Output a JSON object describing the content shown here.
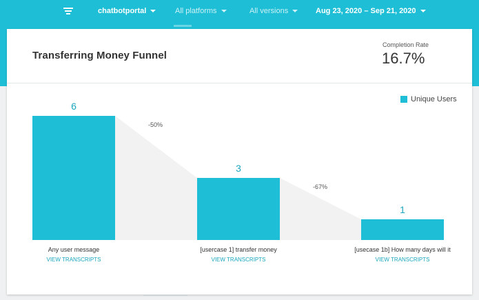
{
  "toolbar": {
    "menu_icon": "menu-icon",
    "project": "chatbotportal",
    "platforms": "All platforms",
    "versions": "All versions",
    "date_range": "Aug 23, 2020 – Sep 21, 2020"
  },
  "card": {
    "title": "Transferring Money Funnel",
    "completion_label": "Completion Rate",
    "completion_value": "16.7%",
    "view_transcripts": "VIEW TRANSCRIPTS"
  },
  "colors": {
    "accent": "#1ebfd6",
    "bar": "#1ebfd6",
    "value_text": "#1aa6bd",
    "dropoff": "#f2f2f2"
  },
  "chart_data": {
    "type": "bar",
    "categories": [
      "Any user message",
      "[usercase 1] transfer money",
      "[usecase 1b] How many days will it"
    ],
    "values": [
      6,
      3,
      1
    ],
    "dropoffs": [
      "-50%",
      "-67%"
    ],
    "legend": "Unique Users",
    "legend_position": "top-right",
    "ylim": [
      0,
      6
    ],
    "grid": false
  }
}
